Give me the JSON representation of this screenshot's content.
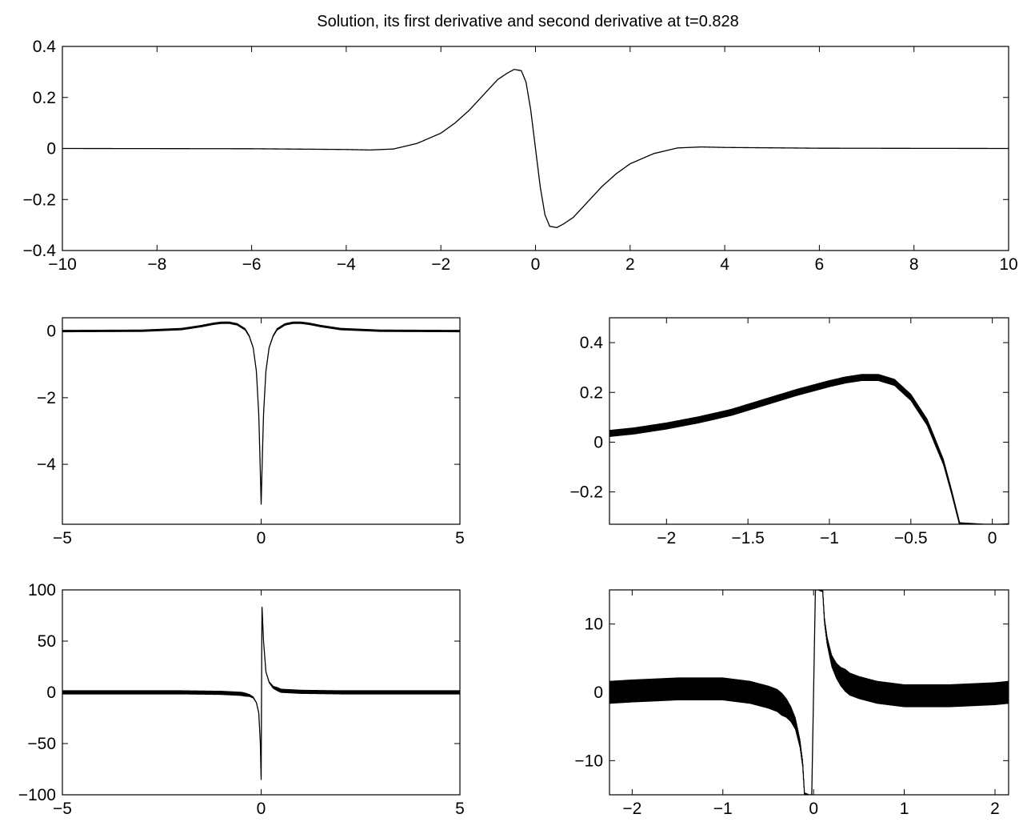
{
  "figure_title": "Solution, its first derivative and second derivative at t=0.828",
  "chart_data": [
    {
      "type": "line",
      "panel": "solution",
      "title": "Solution, its first derivative and second derivative at t=0.828",
      "xlim": [
        -10,
        10
      ],
      "ylim": [
        -0.4,
        0.4
      ],
      "xticks": [
        -10,
        -8,
        -6,
        -4,
        -2,
        0,
        2,
        4,
        6,
        8,
        10
      ],
      "yticks": [
        -0.4,
        -0.2,
        0,
        0.2,
        0.4
      ],
      "xtick_labels": [
        "−10",
        "−8",
        "−6",
        "−4",
        "−2",
        "0",
        "2",
        "4",
        "6",
        "8",
        "10"
      ],
      "ytick_labels": [
        "−0.4",
        "−0.2",
        "0",
        "0.2",
        "0.4"
      ],
      "grid": false,
      "series": [
        {
          "x": [
            -10,
            -6,
            -4,
            -3.5,
            -3,
            -2.5,
            -2,
            -1.7,
            -1.4,
            -1.2,
            -1.0,
            -0.8,
            -0.6,
            -0.45,
            -0.3,
            -0.2,
            -0.1,
            0,
            0.1,
            0.2,
            0.3,
            0.45,
            0.6,
            0.8,
            1.0,
            1.2,
            1.4,
            1.7,
            2,
            2.5,
            3,
            3.5,
            4,
            6,
            10
          ],
          "y": [
            0,
            -0.001,
            -0.004,
            -0.006,
            -0.002,
            0.02,
            0.06,
            0.1,
            0.15,
            0.19,
            0.23,
            0.27,
            0.295,
            0.31,
            0.305,
            0.26,
            0.15,
            0,
            -0.15,
            -0.26,
            -0.305,
            -0.31,
            -0.295,
            -0.27,
            -0.23,
            -0.19,
            -0.15,
            -0.1,
            -0.06,
            -0.02,
            0.002,
            0.006,
            0.004,
            0.001,
            0
          ]
        }
      ]
    },
    {
      "type": "line",
      "panel": "first-derivative",
      "xlim": [
        -5,
        5
      ],
      "ylim": [
        -5.8,
        0.4
      ],
      "xticks": [
        -5,
        0,
        5
      ],
      "yticks": [
        -4,
        -2,
        0
      ],
      "xtick_labels": [
        "−5",
        "0",
        "5"
      ],
      "ytick_labels": [
        "−4",
        "−2",
        "0"
      ],
      "grid": false,
      "series": [
        {
          "x": [
            -5,
            -3,
            -2,
            -1.5,
            -1.2,
            -1.0,
            -0.8,
            -0.6,
            -0.4,
            -0.3,
            -0.2,
            -0.12,
            -0.06,
            -0.03,
            0,
            0.03,
            0.06,
            0.12,
            0.2,
            0.3,
            0.4,
            0.6,
            0.8,
            1.0,
            1.2,
            1.5,
            2,
            3,
            5
          ],
          "y": [
            0,
            0.01,
            0.06,
            0.15,
            0.22,
            0.25,
            0.25,
            0.2,
            0.05,
            -0.15,
            -0.5,
            -1.2,
            -2.5,
            -3.8,
            -5.2,
            -3.8,
            -2.5,
            -1.2,
            -0.5,
            -0.15,
            0.05,
            0.2,
            0.25,
            0.25,
            0.22,
            0.15,
            0.06,
            0.01,
            0
          ]
        }
      ]
    },
    {
      "type": "line",
      "panel": "first-derivative-zoom",
      "xlim": [
        -2.35,
        0.1
      ],
      "ylim": [
        -0.33,
        0.5
      ],
      "xticks": [
        -2,
        -1.5,
        -1,
        -0.5,
        0
      ],
      "yticks": [
        -0.2,
        0,
        0.2,
        0.4
      ],
      "xtick_labels": [
        "−2",
        "−1.5",
        "−1",
        "−0.5",
        "0"
      ],
      "ytick_labels": [
        "−0.2",
        "0",
        "0.2",
        "0.4"
      ],
      "grid": false,
      "series": [
        {
          "x": [
            -2.35,
            -2.2,
            -2.0,
            -1.8,
            -1.6,
            -1.4,
            -1.2,
            -1.0,
            -0.9,
            -0.8,
            -0.7,
            -0.6,
            -0.5,
            -0.4,
            -0.3,
            -0.25,
            -0.2
          ],
          "y": [
            0.035,
            0.045,
            0.065,
            0.09,
            0.12,
            0.16,
            0.2,
            0.235,
            0.25,
            0.26,
            0.26,
            0.24,
            0.18,
            0.08,
            -0.08,
            -0.2,
            -0.33
          ]
        }
      ]
    },
    {
      "type": "line",
      "panel": "second-derivative",
      "xlim": [
        -5,
        5
      ],
      "ylim": [
        -100,
        100
      ],
      "xticks": [
        -5,
        0,
        5
      ],
      "yticks": [
        -100,
        -50,
        0,
        50,
        100
      ],
      "xtick_labels": [
        "−5",
        "0",
        "5"
      ],
      "ytick_labels": [
        "−100",
        "−50",
        "0",
        "50",
        "100"
      ],
      "grid": false,
      "series": [
        {
          "x": [
            -5,
            -2,
            -1,
            -0.5,
            -0.3,
            -0.2,
            -0.12,
            -0.06,
            -0.02,
            0,
            0.02,
            0.06,
            0.12,
            0.2,
            0.3,
            0.5,
            1,
            2,
            5
          ],
          "y": [
            0,
            0,
            -0.5,
            -1.5,
            -3,
            -5,
            -10,
            -20,
            -50,
            -85,
            85,
            50,
            20,
            10,
            5,
            1.5,
            0.5,
            0,
            0
          ]
        }
      ]
    },
    {
      "type": "line",
      "panel": "second-derivative-zoom",
      "xlim": [
        -2.25,
        2.15
      ],
      "ylim": [
        -15,
        15
      ],
      "xticks": [
        -2,
        -1,
        0,
        1,
        2
      ],
      "yticks": [
        -10,
        0,
        10
      ],
      "xtick_labels": [
        "−2",
        "−1",
        "0",
        "1",
        "2"
      ],
      "ytick_labels": [
        "−10",
        "0",
        "10"
      ],
      "grid": false,
      "series": [
        {
          "x": [
            -2.25,
            -2.0,
            -1.5,
            -1.0,
            -0.7,
            -0.5,
            -0.4,
            -0.3,
            -0.25,
            -0.2,
            -0.15,
            -0.12,
            -0.1,
            -0.02,
            0.02,
            0.1,
            0.12,
            0.15,
            0.2,
            0.25,
            0.3,
            0.4,
            0.5,
            0.7,
            1.0,
            1.5,
            2.0,
            2.15
          ],
          "y": [
            0,
            0.2,
            0.5,
            0.5,
            0,
            -0.7,
            -1.2,
            -2.3,
            -3.2,
            -4.6,
            -7.5,
            -10.5,
            -15,
            -15,
            15,
            15,
            10.5,
            7.5,
            4.6,
            3.2,
            2.3,
            1.2,
            0.7,
            0,
            -0.5,
            -0.5,
            -0.2,
            0
          ]
        }
      ]
    }
  ]
}
